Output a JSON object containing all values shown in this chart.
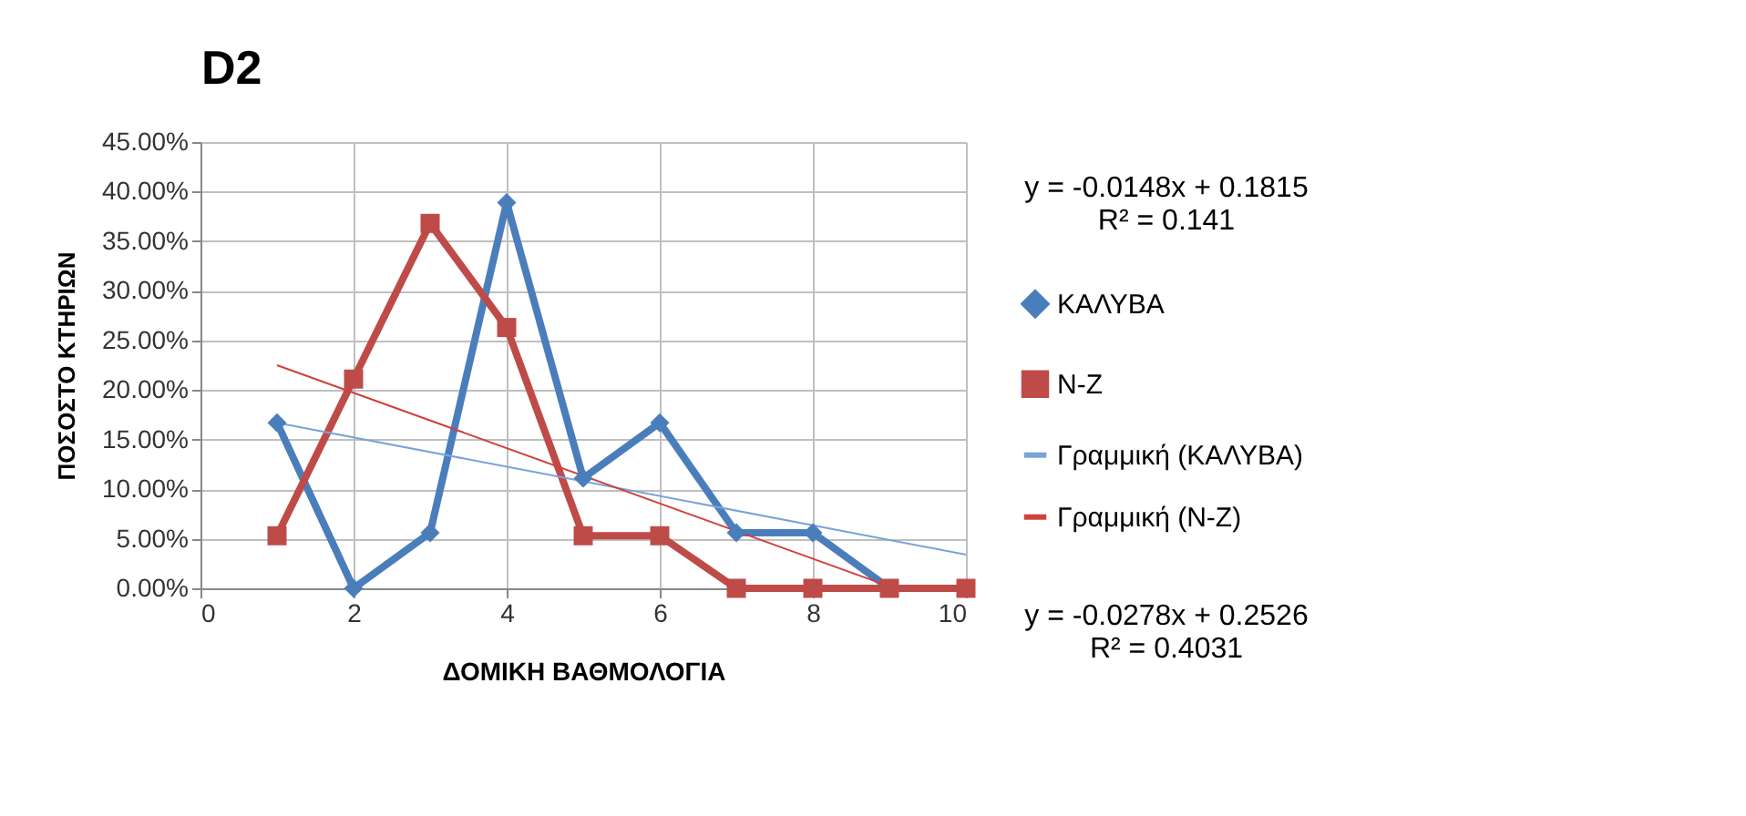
{
  "chart_data": {
    "type": "line",
    "title": "D2",
    "xlabel": "ΔΟΜΙΚΗ ΒΑΘΜΟΛΟΓΙΑ",
    "ylabel": "ΠΟΣΟΣΤΟ ΚΤΗΡΙΩΝ",
    "x": [
      1,
      2,
      3,
      4,
      5,
      6,
      7,
      8,
      9,
      10
    ],
    "series": [
      {
        "name": "ΚΑΛΥΒΑ",
        "color": "#4a7ebb",
        "marker": "diamond",
        "x": [
          1,
          2,
          3,
          4,
          5,
          6,
          7,
          8,
          9
        ],
        "values": [
          16.7,
          0,
          5.6,
          38.9,
          11.1,
          16.7,
          5.6,
          5.6,
          0
        ]
      },
      {
        "name": "Ν-Ζ",
        "color": "#be4b48",
        "marker": "square",
        "values": [
          5.3,
          21.1,
          36.8,
          26.3,
          5.3,
          5.3,
          0,
          0,
          0,
          0
        ]
      },
      {
        "name": "Γραμμική (ΚΑΛΥΒΑ)",
        "color": "#7aa3d8",
        "marker": "none",
        "x": [
          1,
          10
        ],
        "values": [
          16.7,
          3.4
        ]
      },
      {
        "name": "Γραμμική (Ν-Ζ)",
        "color": "#d0403c",
        "marker": "none",
        "x": [
          1,
          9
        ],
        "values": [
          22.5,
          0.2
        ]
      }
    ],
    "xlim": [
      0,
      10
    ],
    "xticks": [
      0,
      2,
      4,
      6,
      8,
      10
    ],
    "ylim": [
      0,
      45
    ],
    "yticks": [
      {
        "value": 0,
        "label": "0.00%"
      },
      {
        "value": 5,
        "label": "5.00%"
      },
      {
        "value": 10,
        "label": "10.00%"
      },
      {
        "value": 15,
        "label": "15.00%"
      },
      {
        "value": 20,
        "label": "20.00%"
      },
      {
        "value": 25,
        "label": "25.00%"
      },
      {
        "value": 30,
        "label": "30.00%"
      },
      {
        "value": 35,
        "label": "35.00%"
      },
      {
        "value": 40,
        "label": "40.00%"
      },
      {
        "value": 45,
        "label": "45.00%"
      }
    ],
    "annotations": [
      "y = -0.0148x + 0.1815\nR² = 0.141",
      "y = -0.0278x + 0.2526\nR² = 0.4031"
    ],
    "grid": true,
    "legend": "right",
    "line_style": "solid"
  }
}
